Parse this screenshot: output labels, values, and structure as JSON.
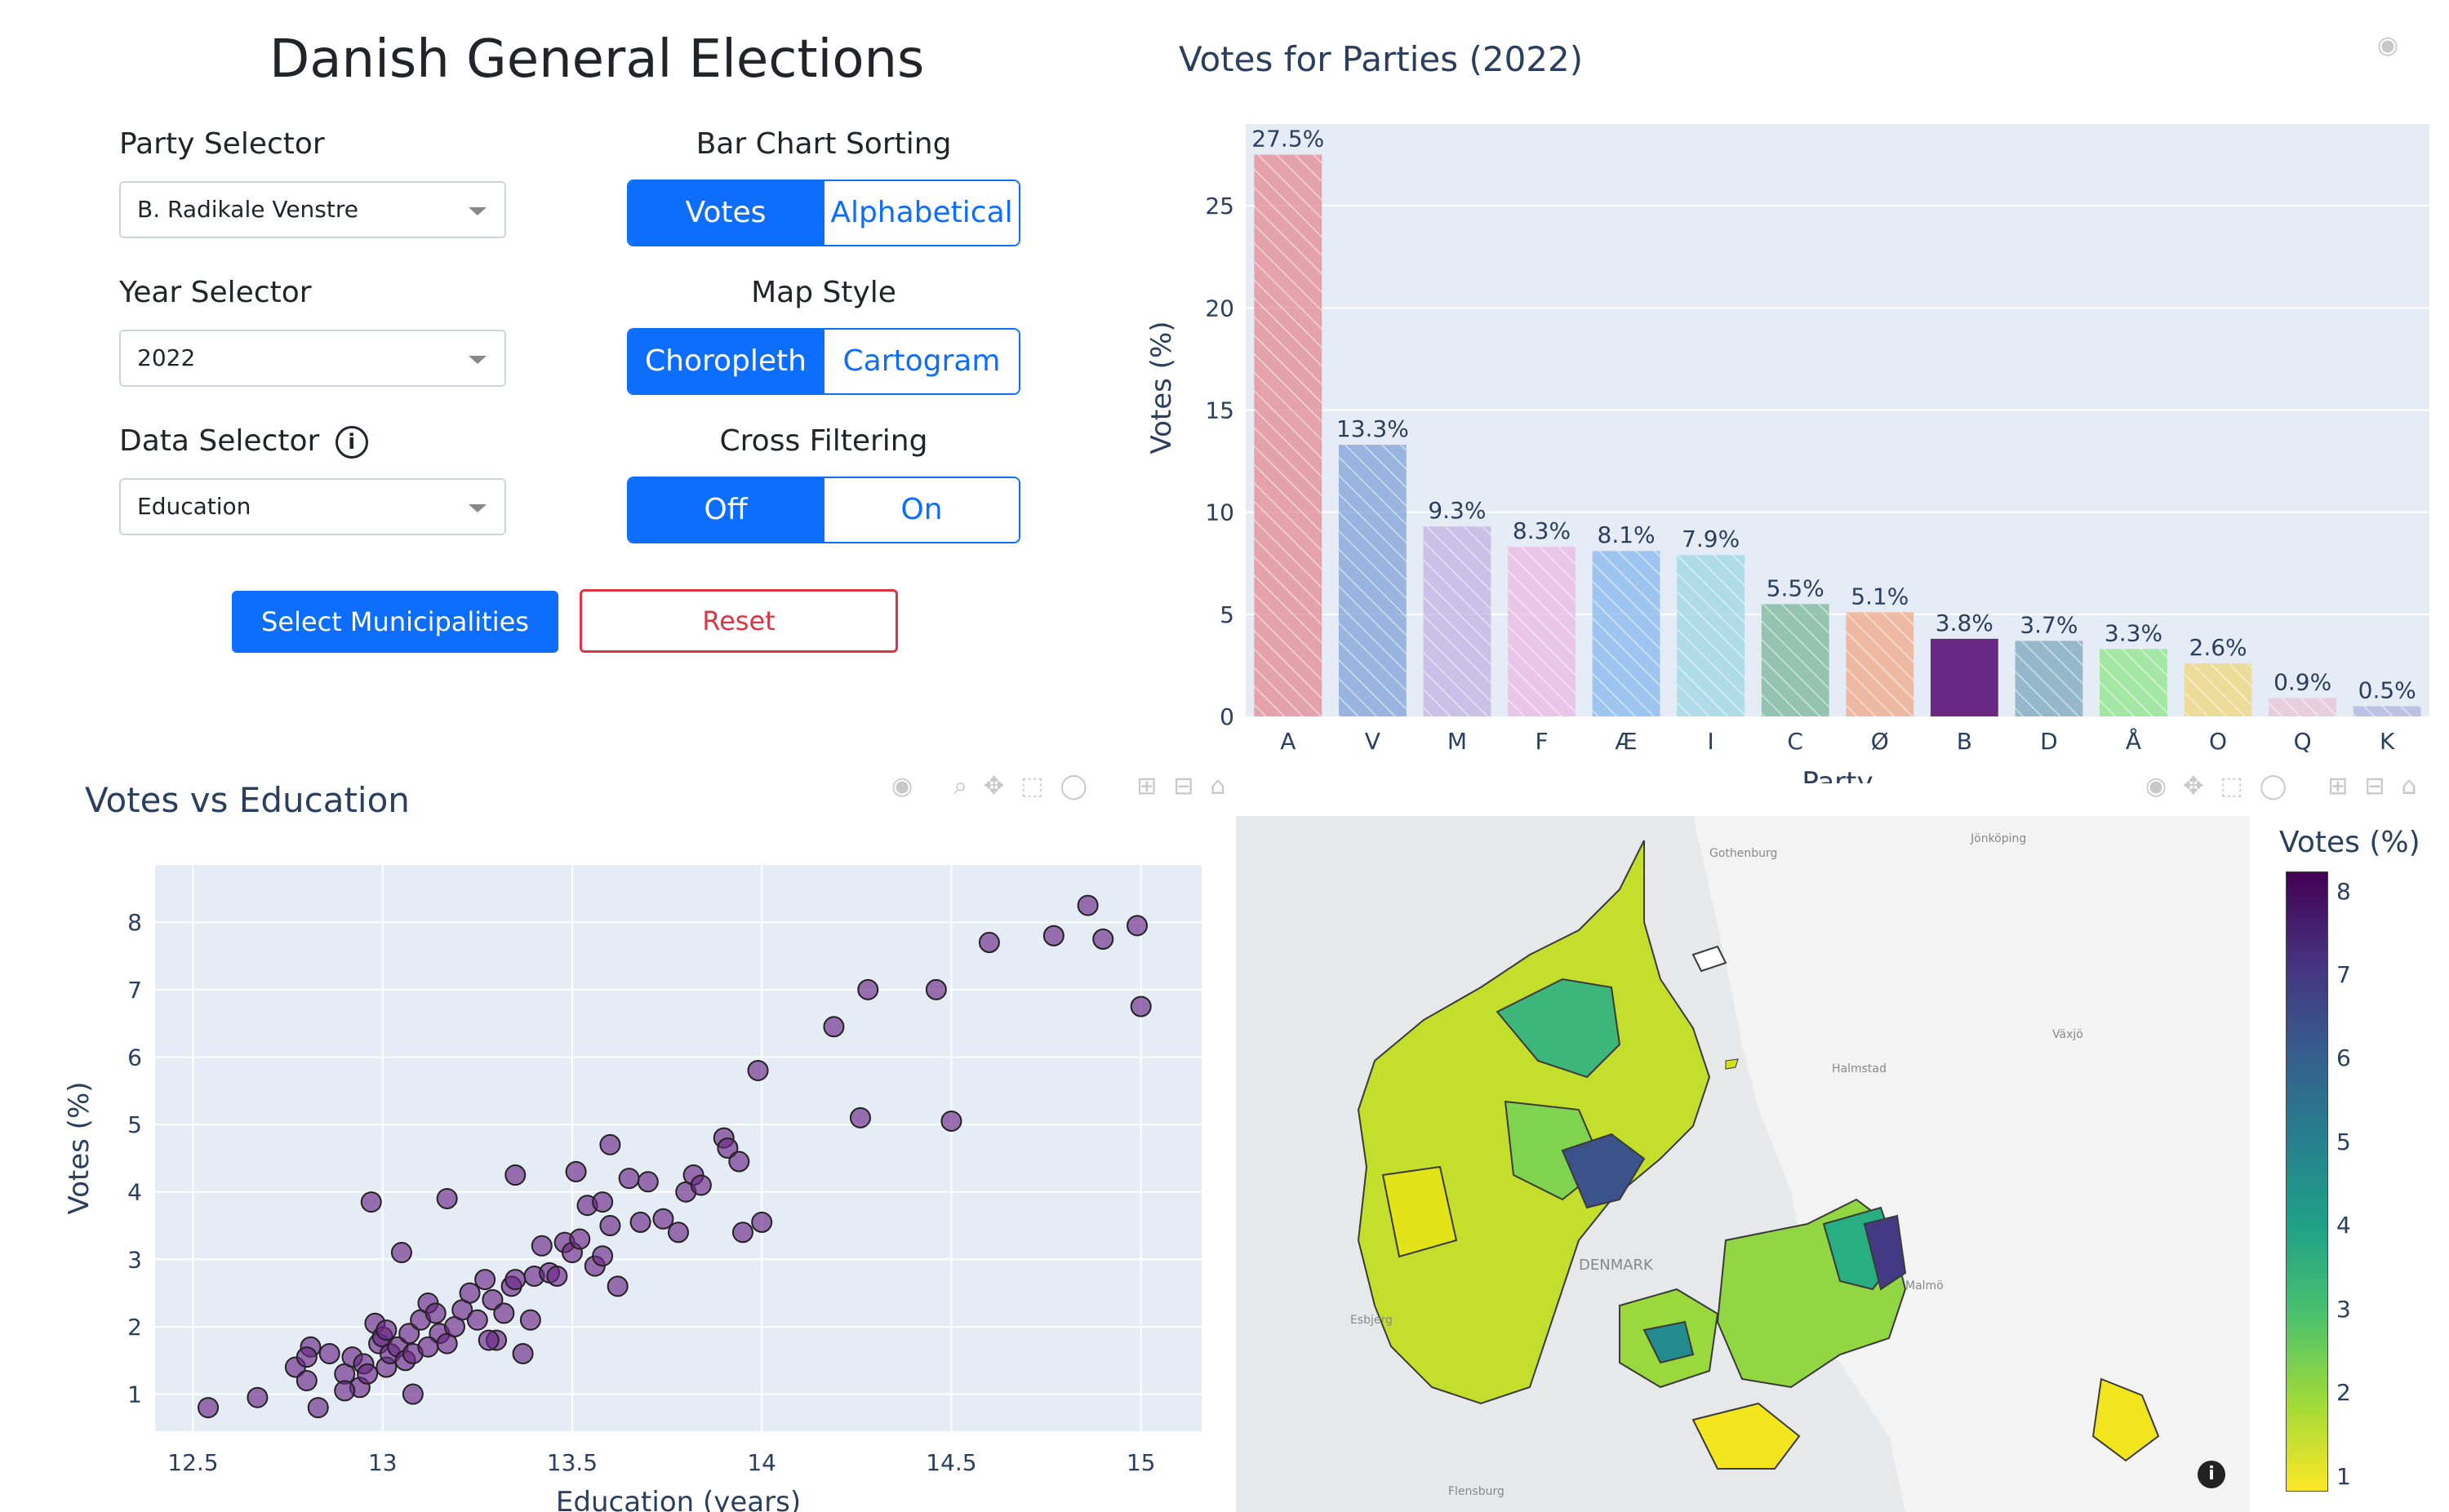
{
  "app_title": "Danish General Elections",
  "controls": {
    "party_selector": {
      "label": "Party Selector",
      "value": "B. Radikale Venstre"
    },
    "year_selector": {
      "label": "Year Selector",
      "value": "2022"
    },
    "data_selector": {
      "label": "Data Selector",
      "value": "Education"
    },
    "bar_sorting": {
      "label": "Bar Chart Sorting",
      "options": [
        "Votes",
        "Alphabetical"
      ],
      "selected": "Votes"
    },
    "map_style": {
      "label": "Map Style",
      "options": [
        "Choropleth",
        "Cartogram"
      ],
      "selected": "Choropleth"
    },
    "cross_filtering": {
      "label": "Cross Filtering",
      "options": [
        "Off",
        "On"
      ],
      "selected": "Off"
    },
    "select_municipalities_label": "Select Municipalities",
    "reset_label": "Reset"
  },
  "map": {
    "colorbar_title": "Votes (%)",
    "colorbar_ticks": [
      "1",
      "2",
      "3",
      "4",
      "5",
      "6",
      "7",
      "8"
    ],
    "place_labels": [
      "Gothenburg",
      "Jönköping",
      "Halmstad",
      "Växjö",
      "DENMARK",
      "Malmö",
      "Esbjerg",
      "Flensburg"
    ],
    "colorscale": [
      "#fde725",
      "#a0da39",
      "#4ac16d",
      "#1fa187",
      "#277f8e",
      "#365c8d",
      "#46327e",
      "#440154"
    ]
  },
  "chart_data": [
    {
      "type": "bar",
      "title": "Votes for Parties (2022)",
      "xlabel": "Party",
      "ylabel": "Votes (%)",
      "ylim": [
        0,
        29
      ],
      "yticks": [
        0,
        5,
        10,
        15,
        20,
        25
      ],
      "categories": [
        "A",
        "V",
        "M",
        "F",
        "Æ",
        "I",
        "C",
        "Ø",
        "B",
        "D",
        "Å",
        "O",
        "Q",
        "K"
      ],
      "values": [
        27.5,
        13.3,
        9.3,
        8.3,
        8.1,
        7.9,
        5.5,
        5.1,
        3.8,
        3.7,
        3.3,
        2.6,
        0.9,
        0.5
      ],
      "data_labels": [
        "27.5%",
        "13.3%",
        "9.3%",
        "8.3%",
        "8.1%",
        "7.9%",
        "5.5%",
        "5.1%",
        "3.8%",
        "3.7%",
        "3.3%",
        "2.6%",
        "0.9%",
        "0.5%"
      ],
      "colors": [
        "#e28a93",
        "#7fa2d6",
        "#c2b2e2",
        "#eab8e6",
        "#86b8ec",
        "#9cd5e4",
        "#78b59a",
        "#f0a886",
        "#6a2885",
        "#7aa8bb",
        "#8ee58a",
        "#eed67a",
        "#e8c4d4",
        "#aeb4dc"
      ],
      "highlighted": "B",
      "grid": true
    },
    {
      "type": "scatter",
      "title": "Votes vs Education",
      "xlabel": "Education (years)",
      "ylabel": "Votes (%)",
      "xlim": [
        12.4,
        15.16
      ],
      "ylim": [
        0.45,
        8.85
      ],
      "xticks": [
        "12.5",
        "13",
        "13.5",
        "14",
        "14.5",
        "15"
      ],
      "yticks": [
        "1",
        "2",
        "3",
        "4",
        "5",
        "6",
        "7",
        "8"
      ],
      "color": "#6a2885",
      "points": [
        [
          12.54,
          0.8
        ],
        [
          12.67,
          0.95
        ],
        [
          12.77,
          1.4
        ],
        [
          12.8,
          1.2
        ],
        [
          12.81,
          1.7
        ],
        [
          12.83,
          0.8
        ],
        [
          12.8,
          1.55
        ],
        [
          12.86,
          1.6
        ],
        [
          12.9,
          1.3
        ],
        [
          12.92,
          1.55
        ],
        [
          12.94,
          1.1
        ],
        [
          12.95,
          1.45
        ],
        [
          12.96,
          1.3
        ],
        [
          12.98,
          2.05
        ],
        [
          12.99,
          1.75
        ],
        [
          13.0,
          1.85
        ],
        [
          13.01,
          1.4
        ],
        [
          13.02,
          1.6
        ],
        [
          13.04,
          1.7
        ],
        [
          13.06,
          1.5
        ],
        [
          13.07,
          1.9
        ],
        [
          13.08,
          1.6
        ],
        [
          13.1,
          2.1
        ],
        [
          13.12,
          2.35
        ],
        [
          13.14,
          2.2
        ],
        [
          13.15,
          1.9
        ],
        [
          13.17,
          1.75
        ],
        [
          13.19,
          2.0
        ],
        [
          13.21,
          2.25
        ],
        [
          13.23,
          2.5
        ],
        [
          13.25,
          2.1
        ],
        [
          13.27,
          2.7
        ],
        [
          13.29,
          2.4
        ],
        [
          13.3,
          1.8
        ],
        [
          13.32,
          2.2
        ],
        [
          13.34,
          2.6
        ],
        [
          13.35,
          2.7
        ],
        [
          13.37,
          1.6
        ],
        [
          13.39,
          2.1
        ],
        [
          13.4,
          2.75
        ],
        [
          13.42,
          3.2
        ],
        [
          13.44,
          2.8
        ],
        [
          13.46,
          2.75
        ],
        [
          13.48,
          3.25
        ],
        [
          13.5,
          3.1
        ],
        [
          13.52,
          3.3
        ],
        [
          13.54,
          3.8
        ],
        [
          13.56,
          2.9
        ],
        [
          13.58,
          3.05
        ],
        [
          13.6,
          3.5
        ],
        [
          13.62,
          2.6
        ],
        [
          13.65,
          4.2
        ],
        [
          13.68,
          3.55
        ],
        [
          13.78,
          3.4
        ],
        [
          13.8,
          4.0
        ],
        [
          13.82,
          4.25
        ],
        [
          13.84,
          4.1
        ],
        [
          13.9,
          4.8
        ],
        [
          13.91,
          4.65
        ],
        [
          13.95,
          3.4
        ],
        [
          14.0,
          3.55
        ],
        [
          13.99,
          5.8
        ],
        [
          14.19,
          6.45
        ],
        [
          14.26,
          5.1
        ],
        [
          14.28,
          7.0
        ],
        [
          14.46,
          7.0
        ],
        [
          14.5,
          5.05
        ],
        [
          14.6,
          7.7
        ],
        [
          14.77,
          7.8
        ],
        [
          14.86,
          8.25
        ],
        [
          14.9,
          7.75
        ],
        [
          14.99,
          7.95
        ],
        [
          15.0,
          6.75
        ],
        [
          12.97,
          3.85
        ],
        [
          13.05,
          3.1
        ],
        [
          13.17,
          3.9
        ],
        [
          13.35,
          4.25
        ],
        [
          13.51,
          4.3
        ],
        [
          13.6,
          4.7
        ],
        [
          13.7,
          4.15
        ],
        [
          13.94,
          4.45
        ],
        [
          13.58,
          3.85
        ],
        [
          13.74,
          3.6
        ],
        [
          12.9,
          1.05
        ],
        [
          13.08,
          1.0
        ],
        [
          13.28,
          1.8
        ],
        [
          13.12,
          1.7
        ],
        [
          13.01,
          1.95
        ]
      ]
    }
  ]
}
